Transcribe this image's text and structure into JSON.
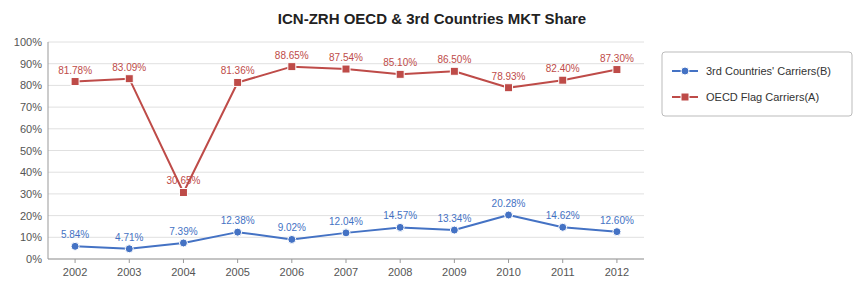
{
  "chart_data": {
    "type": "line",
    "title": "ICN-ZRH OECD & 3rd Countries MKT Share",
    "x": [
      2002,
      2003,
      2004,
      2005,
      2006,
      2007,
      2008,
      2009,
      2010,
      2011,
      2012
    ],
    "series": [
      {
        "name": "3rd Countries' Carriers(B)",
        "color": "#4472C4",
        "marker": "circle",
        "values": [
          5.84,
          4.71,
          7.39,
          12.38,
          9.02,
          12.04,
          14.57,
          13.34,
          20.28,
          14.62,
          12.6
        ],
        "value_labels": [
          "5.84%",
          "4.71%",
          "7.39%",
          "12.38%",
          "9.02%",
          "12.04%",
          "14.57%",
          "13.34%",
          "20.28%",
          "14.62%",
          "12.60%"
        ]
      },
      {
        "name": "OECD Flag Carriers(A)",
        "color": "#BE4B48",
        "marker": "square",
        "values": [
          81.78,
          83.09,
          30.65,
          81.36,
          88.65,
          87.54,
          85.1,
          86.5,
          78.93,
          82.4,
          87.3
        ],
        "value_labels": [
          "81.78%",
          "83.09%",
          "30.65%",
          "81.36%",
          "88.65%",
          "87.54%",
          "85.10%",
          "86.50%",
          "78.93%",
          "82.40%",
          "87.30%"
        ]
      }
    ],
    "xlim": [
      2001.5,
      2012.5
    ],
    "xticks": [
      2002,
      2003,
      2004,
      2005,
      2006,
      2007,
      2008,
      2009,
      2010,
      2011,
      2012
    ],
    "ylim": [
      0,
      100
    ],
    "yticks": [
      {
        "value": 0,
        "label": "0%"
      },
      {
        "value": 10,
        "label": "10%"
      },
      {
        "value": 20,
        "label": "20%"
      },
      {
        "value": 30,
        "label": "30%"
      },
      {
        "value": 40,
        "label": "40%"
      },
      {
        "value": 50,
        "label": "50%"
      },
      {
        "value": 60,
        "label": "60%"
      },
      {
        "value": 70,
        "label": "70%"
      },
      {
        "value": 80,
        "label": "80%"
      },
      {
        "value": 90,
        "label": "90%"
      },
      {
        "value": 100,
        "label": "100%"
      }
    ],
    "grid": true,
    "legend": "right",
    "data_labels": true
  }
}
